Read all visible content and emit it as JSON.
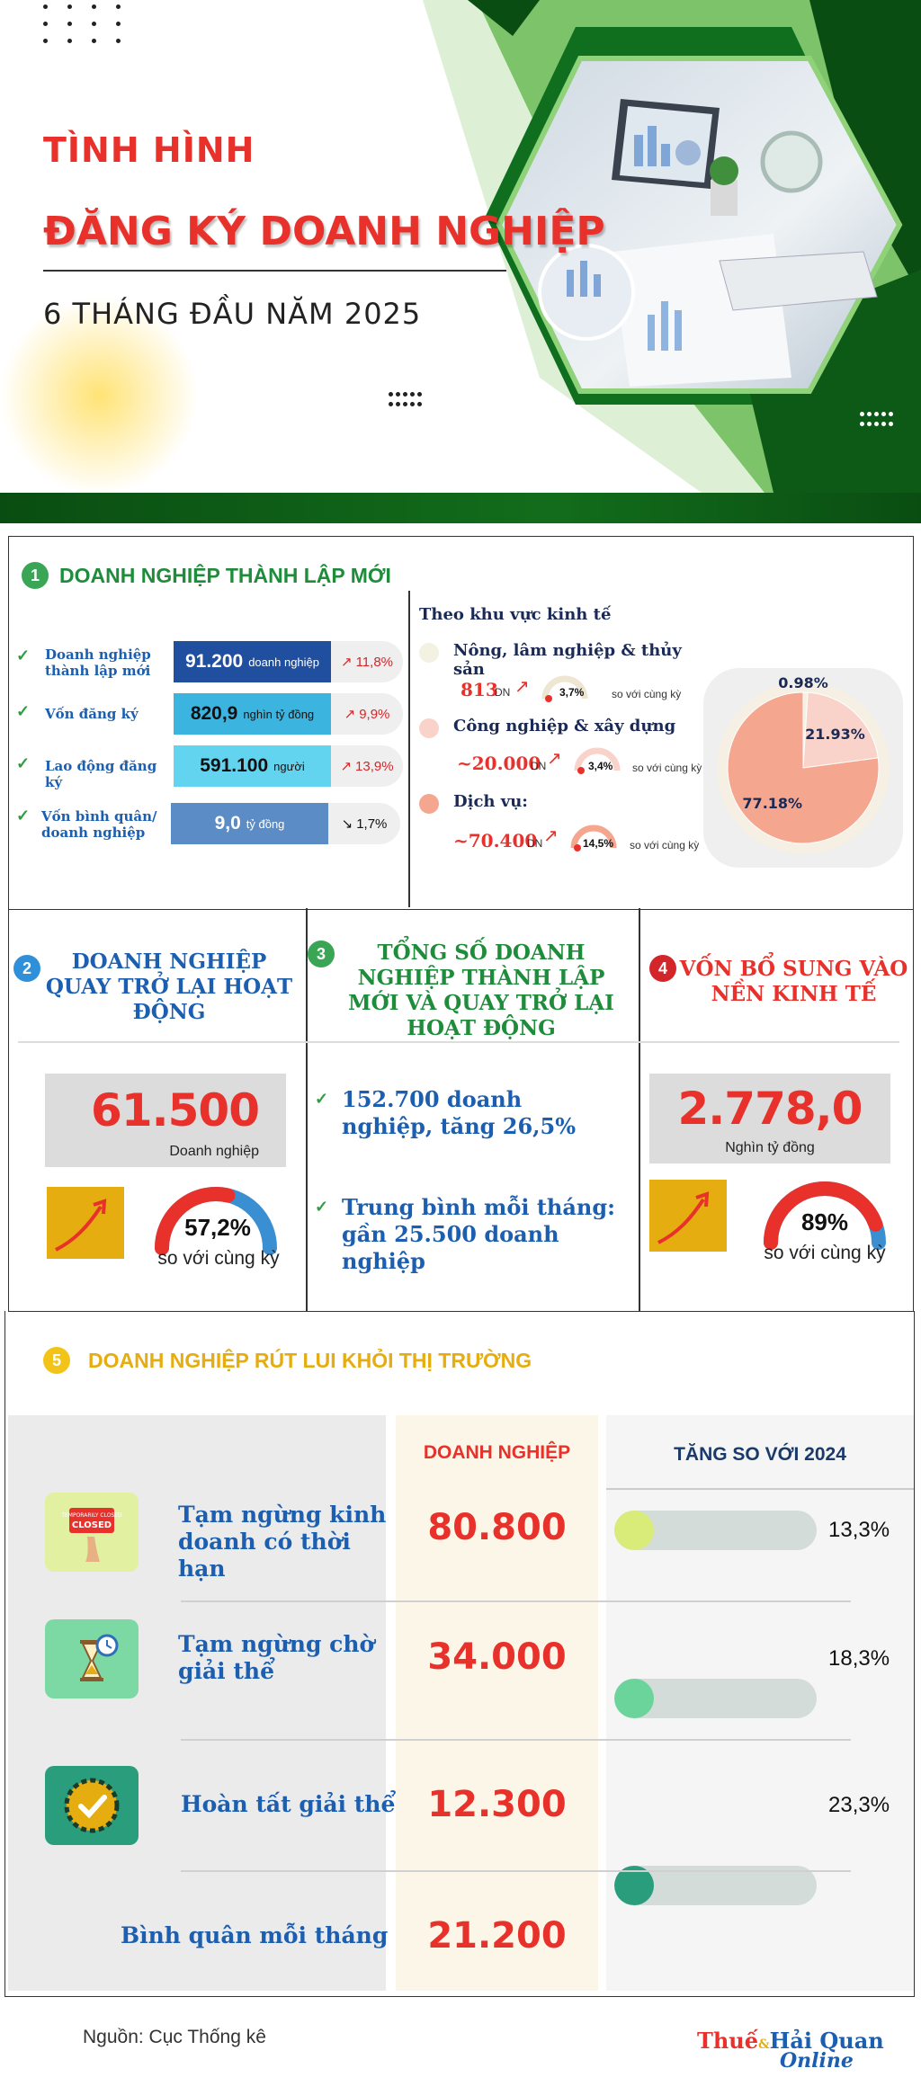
{
  "header": {
    "title_line1": "TÌNH HÌNH",
    "title_line2": "ĐĂNG KÝ DOANH NGHIỆP",
    "title_line3": "6 THÁNG ĐẦU NĂM 2025"
  },
  "section1": {
    "number": "1",
    "title": "DOANH NGHIỆP THÀNH LẬP MỚI",
    "metrics": [
      {
        "label": "Doanh nghiệp thành lập mới",
        "value": "91.200",
        "unit": "doanh nghiệp",
        "change": "11,8%",
        "trend": "up",
        "color": "#1f4f9e"
      },
      {
        "label": "Vốn đăng ký",
        "value": "820,9",
        "unit": "nghìn tỷ đồng",
        "change": "9,9%",
        "trend": "up",
        "color": "#3bb5e0"
      },
      {
        "label": "Lao động đăng ký",
        "value": "591.100",
        "unit": "người",
        "change": "13,9%",
        "trend": "up",
        "color": "#62d4ef"
      },
      {
        "label": "Vốn bình quân/ doanh nghiệp",
        "value": "9,0",
        "unit": "tỷ đồng",
        "change": "1,7%",
        "trend": "down",
        "color": "#5b8cc6"
      }
    ],
    "sector_heading": "Theo khu vực kinh tế",
    "sectors": [
      {
        "name": "Nông, lâm nghiệp & thủy sản",
        "value": "813",
        "unit": "DN",
        "change": "3,7%",
        "compare": "so với cùng kỳ",
        "color": "#f3f1e2"
      },
      {
        "name": "Công nghiệp & xây dựng",
        "value": "~20.000",
        "unit": "DN",
        "change": "3,4%",
        "compare": "so với cùng kỳ",
        "color": "#f9d3c9"
      },
      {
        "name": "Dịch vụ:",
        "value": "~70.400",
        "unit": "DN",
        "change": "14,5%",
        "compare": "so với cùng kỳ",
        "color": "#f4a68f"
      }
    ]
  },
  "chart_data": {
    "type": "pie",
    "title": "Theo khu vực kinh tế",
    "categories": [
      "Nông, lâm nghiệp & thủy sản",
      "Công nghiệp & xây dựng",
      "Dịch vụ"
    ],
    "values": [
      0.98,
      21.93,
      77.18
    ],
    "labels": [
      "0.98%",
      "21.93%",
      "77.18%"
    ],
    "colors": [
      "#f3f1e2",
      "#f9d3c9",
      "#f4a68f"
    ]
  },
  "section2": {
    "number": "2",
    "title": "DOANH NGHIỆP QUAY TRỞ LẠI HOẠT ĐỘNG",
    "value": "61.500",
    "unit": "Doanh nghiệp",
    "gauge_value": "57,2%",
    "gauge_fraction": 0.572,
    "compare": "so với cùng kỳ"
  },
  "section3": {
    "number": "3",
    "title": "TỔNG SỐ DOANH NGHIỆP THÀNH LẬP MỚI VÀ QUAY TRỞ LẠI HOẠT ĐỘNG",
    "line1": "152.700 doanh nghiệp, tăng 26,5%",
    "line2": "Trung bình mỗi tháng: gần 25.500 doanh nghiệp"
  },
  "section4": {
    "number": "4",
    "title": "VỐN BỔ SUNG VÀO NỀN KINH TẾ",
    "value": "2.778,0",
    "unit": "Nghìn tỷ đồng",
    "gauge_value": "89%",
    "gauge_fraction": 0.89,
    "compare": "so với cùng kỳ"
  },
  "section5": {
    "number": "5",
    "title": "DOANH NGHIỆP RÚT LUI KHỎI THỊ TRƯỜNG",
    "col_enterprises": "DOANH NGHIỆP",
    "col_increase": "TĂNG SO VỚI 2024",
    "sign_text": "TEMPORARILY CLOSED",
    "rows": [
      {
        "label": "Tạm ngừng kinh doanh có thời hạn",
        "value": "80.800",
        "pct": "13,3%",
        "fraction": 0.133,
        "fill": "#d9ec7a",
        "icon": "closed-sign-icon",
        "tile": "#e2f0a2"
      },
      {
        "label": "Tạm ngừng chờ giải thể",
        "value": "34.000",
        "pct": "18,3%",
        "fraction": 0.183,
        "fill": "#6bd49a",
        "icon": "hourglass-icon",
        "tile": "#7dd9a4"
      },
      {
        "label": "Hoàn tất giải thể",
        "value": "12.300",
        "pct": "23,3%",
        "fraction": 0.233,
        "fill": "#2a9d7c",
        "icon": "completed-check-icon",
        "tile": "#2a9d7c"
      }
    ],
    "average_label": "Bình quân mỗi tháng",
    "average_value": "21.200"
  },
  "footer": {
    "source": "Nguồn: Cục Thống kê",
    "brand_part1": "Thuế",
    "brand_amp": "&",
    "brand_part2": "Hải Quan",
    "brand_part3": "Online"
  }
}
